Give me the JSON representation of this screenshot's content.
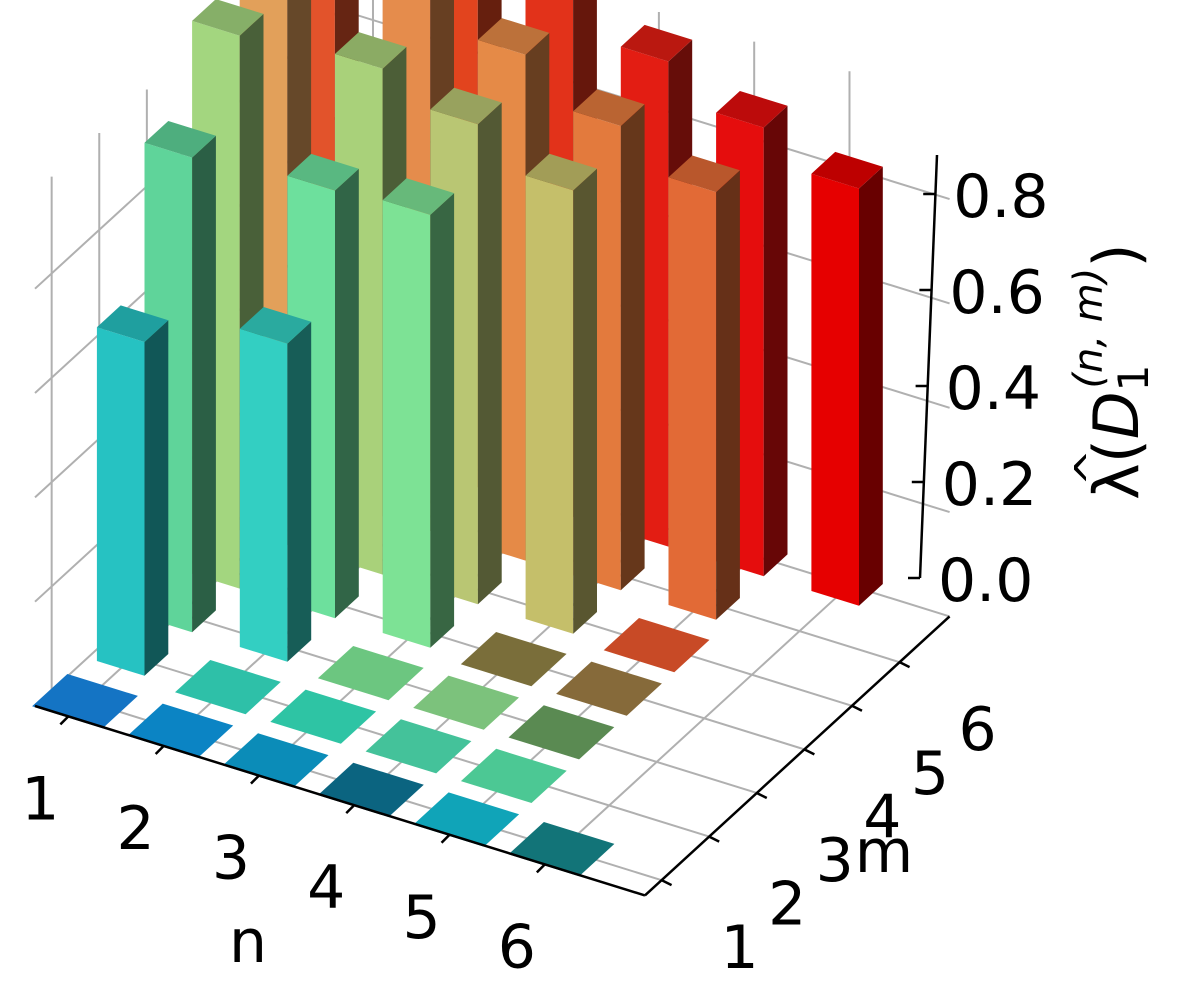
{
  "chart_data": {
    "type": "bar3d",
    "xlabel": "n",
    "ylabel": "m",
    "zlabel": {
      "lambda": "λ",
      "hat": "^",
      "open": "(",
      "var": "D",
      "sub": "1",
      "sup": "(n, m)",
      "close": ")"
    },
    "x_ticks": [
      "1",
      "2",
      "3",
      "4",
      "5",
      "6"
    ],
    "y_ticks": [
      "1",
      "2",
      "3",
      "4",
      "5",
      "6"
    ],
    "z_ticks": [
      "0.0",
      "0.2",
      "0.4",
      "0.6",
      "0.8"
    ],
    "zlim": [
      0,
      0.88
    ],
    "grid": true,
    "bars": [
      {
        "n": 1,
        "m": 2,
        "value": 0.64,
        "color": "#26c2c2"
      },
      {
        "n": 1,
        "m": 3,
        "value": 0.91,
        "color": "#5fd49a"
      },
      {
        "n": 1,
        "m": 4,
        "value": 1.06,
        "color": "#a3d67f"
      },
      {
        "n": 1,
        "m": 5,
        "value": 1.16,
        "color": "#e2a05a"
      },
      {
        "n": 1,
        "m": 6,
        "value": 1.22,
        "color": "#e2532b"
      },
      {
        "n": 2,
        "m": 3,
        "value": 0.61,
        "color": "#33cfc2"
      },
      {
        "n": 2,
        "m": 4,
        "value": 0.82,
        "color": "#6de09d"
      },
      {
        "n": 2,
        "m": 5,
        "value": 0.97,
        "color": "#a9d17a"
      },
      {
        "n": 2,
        "m": 6,
        "value": 1.06,
        "color": "#e58c4c"
      },
      {
        "n": 2,
        "m": 7,
        "value": 1.13,
        "color": "#e2441e"
      },
      {
        "n": 3,
        "m": 4,
        "value": 0.83,
        "color": "#7de295"
      },
      {
        "n": 3,
        "m": 5,
        "value": 0.92,
        "color": "#b9c673"
      },
      {
        "n": 3,
        "m": 6,
        "value": 0.97,
        "color": "#e58a47"
      },
      {
        "n": 3,
        "m": 7,
        "value": 1.03,
        "color": "#e2321a"
      },
      {
        "n": 4,
        "m": 5,
        "value": 0.85,
        "color": "#c5bf6a"
      },
      {
        "n": 4,
        "m": 6,
        "value": 0.89,
        "color": "#e37a3d"
      },
      {
        "n": 4,
        "m": 7,
        "value": 0.93,
        "color": "#e31d13"
      },
      {
        "n": 5,
        "m": 6,
        "value": 0.82,
        "color": "#e26a36"
      },
      {
        "n": 5,
        "m": 7,
        "value": 0.86,
        "color": "#e50d0d"
      },
      {
        "n": 6,
        "m": 7,
        "value": 0.8,
        "color": "#e60000"
      }
    ],
    "floor_tiles": [
      {
        "n": 1,
        "m": 1,
        "color": "#1474c4"
      },
      {
        "n": 2,
        "m": 1,
        "color": "#0b84c4"
      },
      {
        "n": 3,
        "m": 1,
        "color": "#0b8cb8"
      },
      {
        "n": 4,
        "m": 1,
        "color": "#0b6480"
      },
      {
        "n": 5,
        "m": 1,
        "color": "#10a4b8"
      },
      {
        "n": 6,
        "m": 1,
        "color": "#127478"
      },
      {
        "n": 2,
        "m": 2,
        "color": "#2ec0a8"
      },
      {
        "n": 3,
        "m": 2,
        "color": "#2ec4a4"
      },
      {
        "n": 4,
        "m": 2,
        "color": "#44c29a"
      },
      {
        "n": 5,
        "m": 2,
        "color": "#4cc894"
      },
      {
        "n": 3,
        "m": 3,
        "color": "#6cc680"
      },
      {
        "n": 4,
        "m": 3,
        "color": "#7cc27c"
      },
      {
        "n": 5,
        "m": 3,
        "color": "#5a8a52"
      },
      {
        "n": 4,
        "m": 4,
        "color": "#7a6e3a"
      },
      {
        "n": 5,
        "m": 4,
        "color": "#866a3a"
      },
      {
        "n": 5,
        "m": 5,
        "color": "#c84a26"
      }
    ]
  }
}
